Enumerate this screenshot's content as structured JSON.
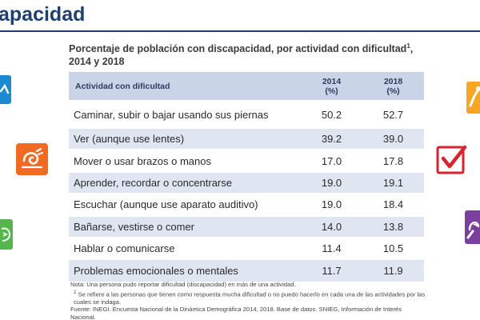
{
  "page": {
    "title": "apacidad"
  },
  "heading": {
    "line1": "Porcentaje de población con discapacidad, por actividad con dificultad",
    "sup": "1",
    "line1_end": ",",
    "line2": "2014 y 2018"
  },
  "table": {
    "headers": {
      "activity": "Actividad con dificultad",
      "y2014": "2014",
      "y2014_unit": "(%)",
      "y2018": "2018",
      "y2018_unit": "(%)"
    },
    "rows": [
      {
        "activity": "Caminar, subir o bajar usando sus piernas",
        "v2014": "50.2",
        "v2018": "52.7"
      },
      {
        "activity": "Ver (aunque use lentes)",
        "v2014": "39.2",
        "v2018": "39.0"
      },
      {
        "activity": "Mover o usar brazos o manos",
        "v2014": "17.0",
        "v2018": "17.8"
      },
      {
        "activity": "Aprender, recordar o concentrarse",
        "v2014": "19.0",
        "v2018": "19.1"
      },
      {
        "activity": "Escuchar (aunque use aparato auditivo)",
        "v2014": "19.0",
        "v2018": "18.4"
      },
      {
        "activity": "Bañarse, vestirse o comer",
        "v2014": "14.0",
        "v2018": "13.8"
      },
      {
        "activity": "Hablar o comunicarse",
        "v2014": "11.4",
        "v2018": "10.5"
      },
      {
        "activity": "Problemas emocionales o mentales",
        "v2014": "11.7",
        "v2018": "11.9"
      }
    ]
  },
  "footnotes": {
    "note": "Nota: Una persona pudo reportar dificultad (discapacidad) en más de una actividad.",
    "fn1_mark": "1",
    "fn1": " Se refiere a las personas que tienen como respuesta mucha dificultad o no puedo hacerlo en cada una de las actividades por las cuales se indaga.",
    "source": "Fuente: INEGI. Encuesta Nacional de la Dinámica Demográfica 2014, 2018. Base de datos. SNIEG, Información de Interés Nacional."
  },
  "colors": {
    "title": "#1f3f70",
    "header_bg": "#c9d4e7",
    "row_alt_bg": "#dfe6f2",
    "icon_blue": "#1b8ad2",
    "icon_orange": "#f06a22",
    "icon_green": "#55b64b",
    "icon_amber": "#f6a623",
    "icon_red": "#d7232e",
    "icon_purple": "#7b3fa0"
  },
  "icons": {
    "left_top": "walking-person-icon",
    "left_middle": "eye-swirl-icon",
    "left_bottom": "head-profile-icon",
    "right_top": "arm-hand-icon",
    "right_middle": "checkmark-box-icon",
    "right_bottom": "hearing-icon"
  }
}
